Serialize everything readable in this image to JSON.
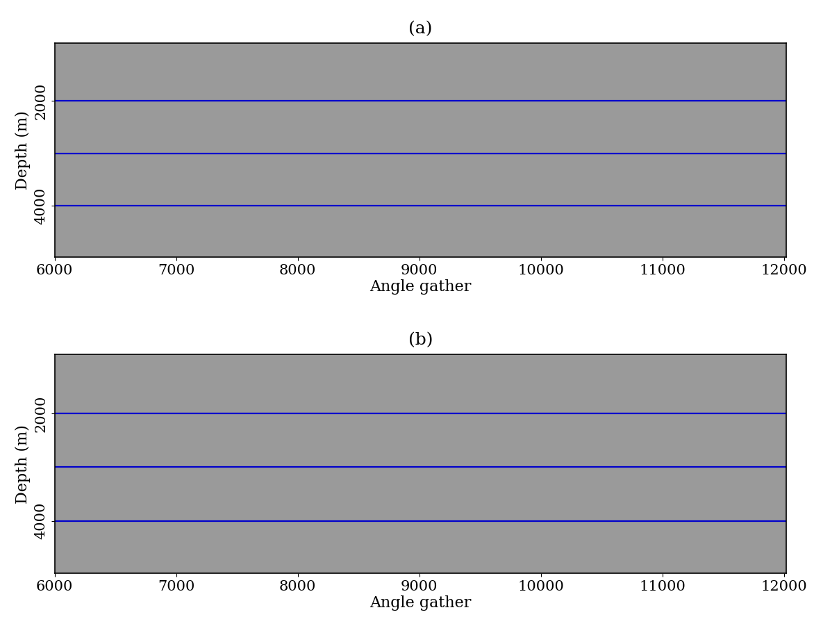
{
  "chart_data": [
    {
      "type": "image",
      "title": "(a)",
      "x_label": "Angle gather",
      "y_label": "Depth (m)",
      "xlim": [
        6000,
        12020
      ],
      "xticks": [
        6000,
        7000,
        8000,
        9000,
        10000,
        11000,
        12000
      ],
      "ylim": [
        4980,
        900
      ],
      "yticks": [
        2000,
        4000
      ],
      "lines": [
        2000,
        3000,
        4000
      ],
      "color": "#0000cc"
    },
    {
      "type": "image",
      "title": "(b)",
      "x_label": "Angle gather",
      "y_label": "Depth (m)",
      "xlim": [
        6000,
        12020
      ],
      "xticks": [
        6000,
        7000,
        8000,
        9000,
        10000,
        11000,
        12000
      ],
      "ylim": [
        4980,
        900
      ],
      "yticks": [
        2000,
        4000
      ],
      "lines": [
        2000,
        3000,
        4000
      ],
      "color": "#0000cc"
    }
  ]
}
